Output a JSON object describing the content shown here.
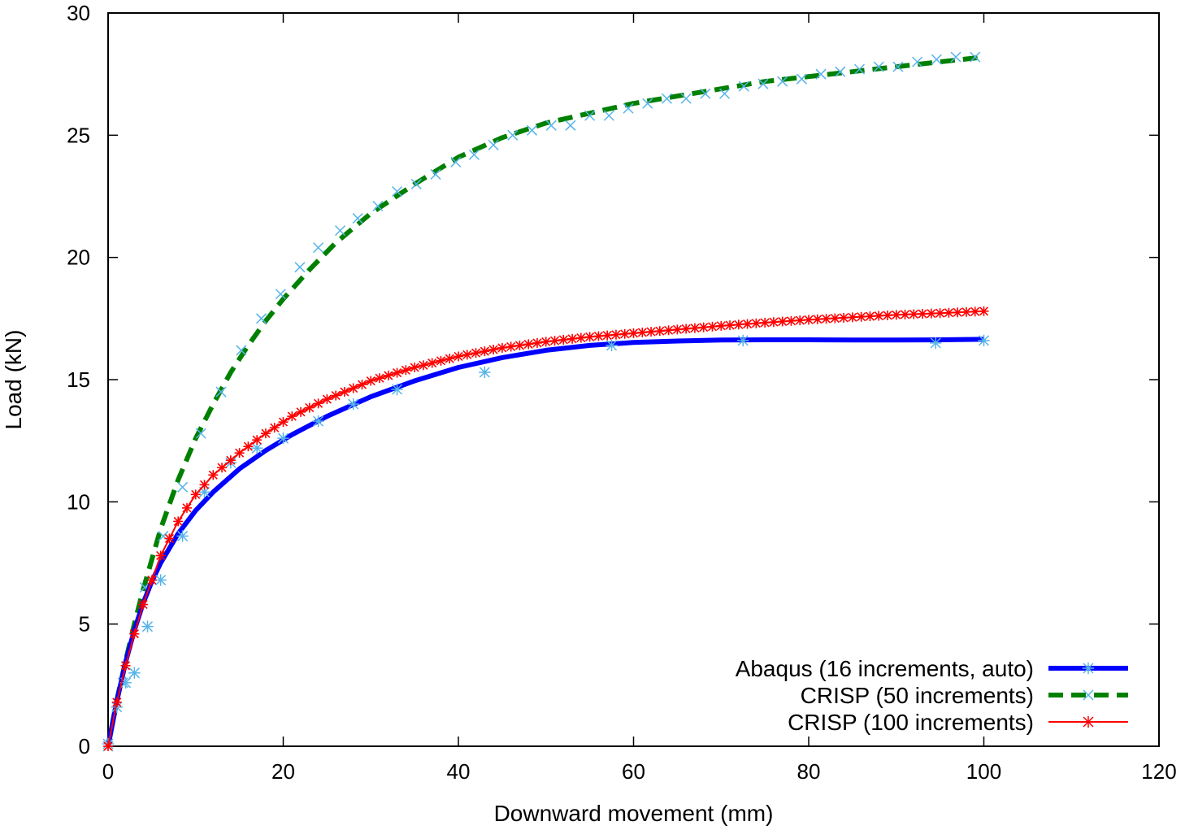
{
  "chart_data": {
    "type": "line",
    "xlabel": "Downward movement (mm)",
    "ylabel": "Load (kN)",
    "xlim": [
      0,
      120
    ],
    "ylim": [
      0,
      30
    ],
    "xticks": [
      0,
      20,
      40,
      60,
      80,
      100,
      120
    ],
    "yticks": [
      0,
      5,
      10,
      15,
      20,
      25,
      30
    ],
    "grid": false,
    "legend_position": "bottom-right",
    "marker_color": "#56B4E9",
    "series": [
      {
        "name": "Abaqus (16 increments, auto)",
        "color": "#0000ff",
        "line_style": "solid",
        "line_width": "thick",
        "marker": "asterisk",
        "curve": {
          "x": [
            0,
            1,
            2,
            3,
            4,
            5,
            6,
            8,
            10,
            12,
            15,
            18,
            21,
            25,
            30,
            35,
            40,
            45,
            50,
            55,
            60,
            65,
            70,
            75,
            80,
            85,
            90,
            95,
            100
          ],
          "y": [
            0,
            1.85,
            3.45,
            4.75,
            5.85,
            6.75,
            7.5,
            8.7,
            9.65,
            10.4,
            11.35,
            12.1,
            12.75,
            13.5,
            14.3,
            14.95,
            15.5,
            15.9,
            16.2,
            16.4,
            16.52,
            16.58,
            16.62,
            16.63,
            16.63,
            16.62,
            16.62,
            16.63,
            16.65
          ]
        },
        "markers": {
          "x": [
            0,
            1,
            2,
            3,
            4.5,
            6,
            8.5,
            11,
            14,
            17,
            20,
            24,
            28,
            33,
            43,
            57.5,
            72.5,
            94.5,
            100
          ],
          "y": [
            0.1,
            1.6,
            2.6,
            3.0,
            4.9,
            6.8,
            8.6,
            10.4,
            11.6,
            12.2,
            12.6,
            13.3,
            14.0,
            14.6,
            15.3,
            16.4,
            16.6,
            16.5,
            16.6
          ]
        }
      },
      {
        "name": "CRISP (50 increments)",
        "color": "#008000",
        "line_style": "dashed",
        "line_width": "thick",
        "marker": "cross",
        "curve": {
          "x": [
            0,
            1,
            2,
            3,
            4,
            6,
            8,
            10,
            12,
            14,
            16,
            18,
            20,
            23,
            26,
            30,
            35,
            40,
            45,
            50,
            55,
            60,
            65,
            70,
            75,
            80,
            85,
            90,
            95,
            100
          ],
          "y": [
            0,
            1.9,
            3.5,
            5.0,
            6.4,
            8.9,
            10.9,
            12.6,
            14.0,
            15.3,
            16.4,
            17.4,
            18.3,
            19.5,
            20.6,
            21.8,
            23.0,
            24.1,
            24.9,
            25.5,
            25.9,
            26.3,
            26.6,
            26.9,
            27.2,
            27.4,
            27.6,
            27.8,
            28.0,
            28.2
          ]
        },
        "markers": {
          "x": [
            0,
            1.7,
            4.2,
            6.3,
            8.5,
            10.6,
            12.9,
            15.2,
            17.5,
            19.7,
            21.9,
            24.0,
            26.5,
            28.5,
            30.8,
            33.0,
            35.2,
            37.4,
            39.7,
            41.8,
            44.0,
            46.2,
            48.4,
            50.6,
            52.8,
            55.0,
            57.2,
            59.4,
            61.6,
            63.8,
            66.0,
            68.2,
            70.4,
            72.6,
            74.8,
            77.0,
            79.2,
            81.4,
            83.6,
            85.8,
            88.0,
            90.2,
            92.4,
            94.6,
            96.8,
            99.0
          ],
          "y": [
            0,
            2.6,
            6.5,
            8.6,
            10.6,
            12.8,
            14.5,
            16.2,
            17.5,
            18.5,
            19.6,
            20.4,
            21.1,
            21.6,
            22.1,
            22.7,
            23.0,
            23.4,
            23.9,
            24.2,
            24.6,
            25.0,
            25.2,
            25.4,
            25.4,
            25.8,
            25.8,
            26.1,
            26.3,
            26.5,
            26.5,
            26.7,
            26.7,
            27.0,
            27.1,
            27.2,
            27.3,
            27.5,
            27.6,
            27.7,
            27.8,
            27.8,
            28.0,
            28.1,
            28.2,
            28.2
          ]
        }
      },
      {
        "name": "CRISP (100 increments)",
        "color": "#ff0000",
        "line_style": "solid",
        "line_width": "thin",
        "marker": "asterisk",
        "curve": {
          "x": [
            0,
            1,
            2,
            3,
            4,
            6,
            8,
            10,
            12,
            15,
            18,
            21,
            25,
            30,
            35,
            40,
            45,
            50,
            55,
            60,
            65,
            70,
            75,
            80,
            85,
            90,
            95,
            100
          ],
          "y": [
            0,
            1.8,
            3.3,
            4.6,
            5.8,
            7.8,
            9.2,
            10.3,
            11.1,
            12.0,
            12.8,
            13.5,
            14.2,
            14.95,
            15.5,
            15.95,
            16.3,
            16.55,
            16.75,
            16.9,
            17.05,
            17.2,
            17.33,
            17.45,
            17.55,
            17.65,
            17.72,
            17.8
          ]
        }
      }
    ]
  }
}
